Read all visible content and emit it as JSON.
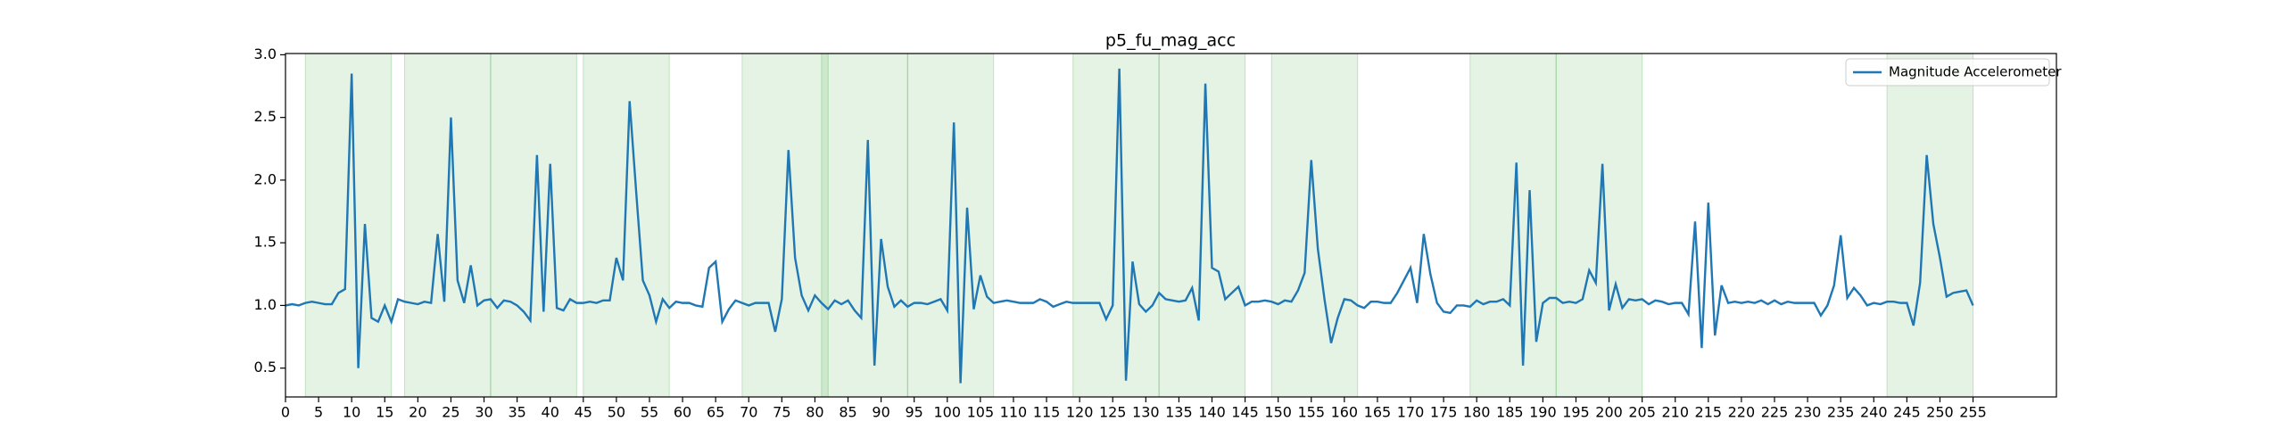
{
  "chart_data": {
    "type": "line",
    "title": "p5_fu_mag_acc",
    "xlim": [
      0,
      267.6
    ],
    "ylim": [
      0.27,
      3.01
    ],
    "xticks": [
      0,
      5,
      10,
      15,
      20,
      25,
      30,
      35,
      40,
      45,
      50,
      55,
      60,
      65,
      70,
      75,
      80,
      85,
      90,
      95,
      100,
      105,
      110,
      115,
      120,
      125,
      130,
      135,
      140,
      145,
      150,
      155,
      160,
      165,
      170,
      175,
      180,
      185,
      190,
      195,
      200,
      205,
      210,
      215,
      220,
      225,
      230,
      235,
      240,
      245,
      250,
      255
    ],
    "yticks": [
      {
        "value": 0.5,
        "label": "0.5"
      },
      {
        "value": 1.0,
        "label": "1.0"
      },
      {
        "value": 1.5,
        "label": "1.5"
      },
      {
        "value": 2.0,
        "label": "2.0"
      },
      {
        "value": 2.5,
        "label": "2.5"
      },
      {
        "value": 3.0,
        "label": "3.0"
      }
    ],
    "legend": "upper right",
    "span_color": "#2ca02c",
    "spans": [
      [
        3,
        16
      ],
      [
        18,
        31
      ],
      [
        31,
        44
      ],
      [
        45,
        58
      ],
      [
        69,
        82
      ],
      [
        81,
        94
      ],
      [
        94,
        107
      ],
      [
        119,
        132
      ],
      [
        132,
        145
      ],
      [
        149,
        162
      ],
      [
        179,
        192
      ],
      [
        192,
        205
      ],
      [
        242,
        255
      ]
    ],
    "series": [
      {
        "name": "Magnitude Accelerometer",
        "color": "#1f77b4",
        "values": [
          1.0,
          1.01,
          1.0,
          1.02,
          1.03,
          1.02,
          1.01,
          1.01,
          1.1,
          1.13,
          2.85,
          0.5,
          1.65,
          0.9,
          0.87,
          1.0,
          0.87,
          1.05,
          1.03,
          1.02,
          1.01,
          1.03,
          1.02,
          1.57,
          1.03,
          2.5,
          1.2,
          1.02,
          1.32,
          1.0,
          1.04,
          1.05,
          0.98,
          1.04,
          1.03,
          1.0,
          0.95,
          0.88,
          2.2,
          0.95,
          2.13,
          0.98,
          0.96,
          1.05,
          1.02,
          1.02,
          1.03,
          1.02,
          1.04,
          1.04,
          1.38,
          1.2,
          2.63,
          1.9,
          1.2,
          1.08,
          0.87,
          1.05,
          0.98,
          1.03,
          1.02,
          1.02,
          1.0,
          0.99,
          1.3,
          1.35,
          0.87,
          0.97,
          1.04,
          1.02,
          1.0,
          1.02,
          1.02,
          1.02,
          0.79,
          1.05,
          2.24,
          1.38,
          1.08,
          0.96,
          1.08,
          1.02,
          0.97,
          1.04,
          1.01,
          1.04,
          0.96,
          0.9,
          2.32,
          0.52,
          1.53,
          1.15,
          0.99,
          1.04,
          0.99,
          1.02,
          1.02,
          1.01,
          1.03,
          1.05,
          0.96,
          2.46,
          0.38,
          1.78,
          0.97,
          1.24,
          1.07,
          1.02,
          1.03,
          1.04,
          1.03,
          1.02,
          1.02,
          1.02,
          1.05,
          1.03,
          0.99,
          1.01,
          1.03,
          1.02,
          1.02,
          1.02,
          1.02,
          1.02,
          0.89,
          1.0,
          2.89,
          0.4,
          1.35,
          1.01,
          0.95,
          1.0,
          1.1,
          1.05,
          1.04,
          1.03,
          1.04,
          1.14,
          0.88,
          2.77,
          1.3,
          1.27,
          1.05,
          1.1,
          1.15,
          1.0,
          1.03,
          1.03,
          1.04,
          1.03,
          1.01,
          1.04,
          1.03,
          1.12,
          1.26,
          2.16,
          1.45,
          1.05,
          0.7,
          0.9,
          1.05,
          1.04,
          1.0,
          0.98,
          1.03,
          1.03,
          1.02,
          1.02,
          1.1,
          1.2,
          1.3,
          1.02,
          1.57,
          1.25,
          1.02,
          0.95,
          0.94,
          1.0,
          1.0,
          0.99,
          1.04,
          1.01,
          1.03,
          1.03,
          1.05,
          1.0,
          2.14,
          0.52,
          1.92,
          0.71,
          1.02,
          1.06,
          1.06,
          1.02,
          1.03,
          1.02,
          1.05,
          1.28,
          1.18,
          2.13,
          0.96,
          1.17,
          0.98,
          1.05,
          1.04,
          1.05,
          1.01,
          1.04,
          1.03,
          1.01,
          1.02,
          1.02,
          0.93,
          1.67,
          0.66,
          1.82,
          0.76,
          1.16,
          1.02,
          1.03,
          1.02,
          1.03,
          1.02,
          1.04,
          1.01,
          1.04,
          1.01,
          1.03,
          1.02,
          1.02,
          1.02,
          1.02,
          0.92,
          1.0,
          1.16,
          1.56,
          1.06,
          1.14,
          1.08,
          1.0,
          1.02,
          1.01,
          1.03,
          1.03,
          1.02,
          1.02,
          0.84,
          1.18,
          2.2,
          1.65,
          1.38,
          1.07,
          1.1,
          1.11,
          1.12,
          1.0
        ]
      }
    ]
  }
}
